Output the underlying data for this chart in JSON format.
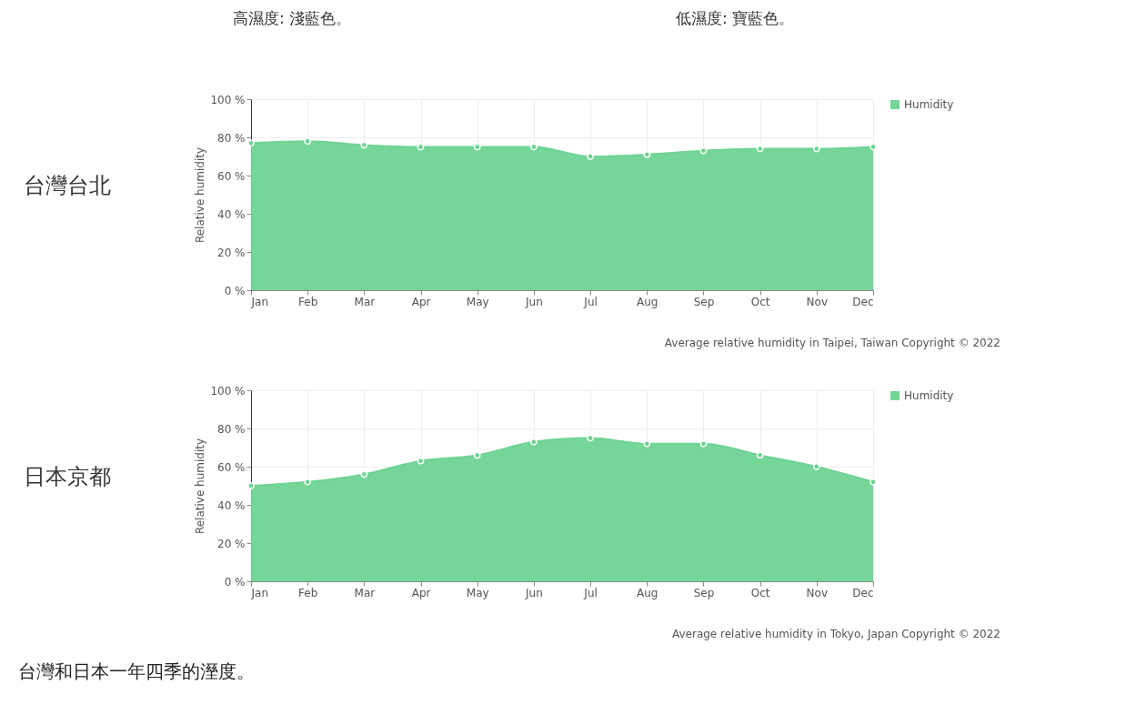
{
  "chart_data": [
    {
      "type": "area",
      "title": "台灣台北",
      "ylabel": "Relative humidity",
      "categories": [
        "Jan",
        "Feb",
        "Mar",
        "Apr",
        "May",
        "Jun",
        "Jul",
        "Aug",
        "Sep",
        "Oct",
        "Nov",
        "Dec"
      ],
      "series": [
        {
          "name": "Humidity",
          "color": "#6fd394",
          "values": [
            77,
            78,
            76,
            75,
            75,
            75,
            70,
            71,
            73,
            74,
            74,
            75
          ]
        }
      ],
      "ylim": [
        0,
        100
      ],
      "yticks": [
        {
          "value": 0,
          "label": "0 %"
        },
        {
          "value": 20,
          "label": "20 %"
        },
        {
          "value": 40,
          "label": "40 %"
        },
        {
          "value": 60,
          "label": "60 %"
        },
        {
          "value": 80,
          "label": "80 %"
        },
        {
          "value": 100,
          "label": "100 %"
        }
      ],
      "grid": true,
      "legend": "top right",
      "marker": "circle",
      "annotations": [
        "高濕度: 淺藍色。",
        "低濕度: 寶藍色。",
        "Average relative humidity in Taipei, Taiwan   Copyright © 2022"
      ]
    },
    {
      "type": "area",
      "title": "日本京都",
      "ylabel": "Relative humidity",
      "categories": [
        "Jan",
        "Feb",
        "Mar",
        "Apr",
        "May",
        "Jun",
        "Jul",
        "Aug",
        "Sep",
        "Oct",
        "Nov",
        "Dec"
      ],
      "series": [
        {
          "name": "Humidity",
          "color": "#6fd394",
          "values": [
            50,
            52,
            56,
            63,
            66,
            73,
            75,
            72,
            72,
            66,
            60,
            52
          ]
        }
      ],
      "ylim": [
        0,
        100
      ],
      "yticks": [
        {
          "value": 0,
          "label": "0 %"
        },
        {
          "value": 20,
          "label": "20 %"
        },
        {
          "value": 40,
          "label": "40 %"
        },
        {
          "value": 60,
          "label": "60 %"
        },
        {
          "value": 80,
          "label": "80 %"
        },
        {
          "value": 100,
          "label": "100 %"
        }
      ],
      "grid": true,
      "legend": "top right",
      "marker": "circle",
      "annotations": [
        "Average relative humidity in Tokyo, Japan   Copyright © 2022",
        "台灣和日本一年四季的溼度。"
      ]
    }
  ]
}
